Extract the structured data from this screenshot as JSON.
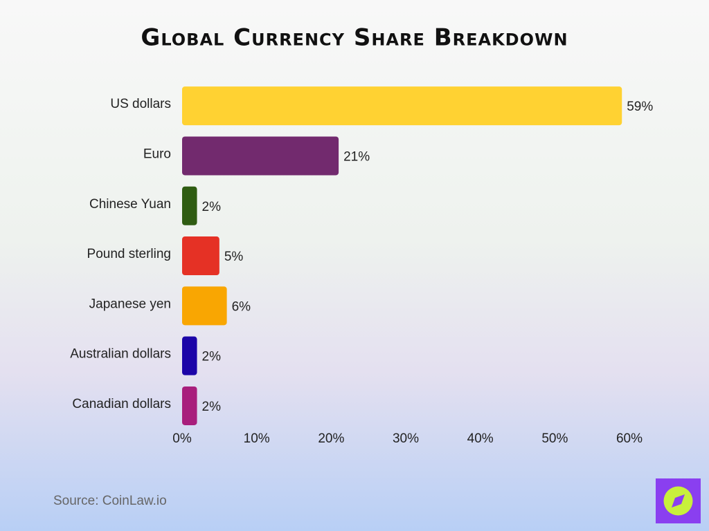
{
  "chart_data": {
    "type": "bar",
    "orientation": "horizontal",
    "title": "Global Currency Share Breakdown",
    "categories": [
      "US dollars",
      "Euro",
      "Chinese Yuan",
      "Pound sterling",
      "Japanese yen",
      "Australian dollars",
      "Canadian dollars"
    ],
    "values": [
      59,
      21,
      2,
      5,
      6,
      2,
      2
    ],
    "value_labels": [
      "59%",
      "21%",
      "2%",
      "5%",
      "6%",
      "2%",
      "2%"
    ],
    "colors": [
      "#ffd232",
      "#722a6e",
      "#2f5c12",
      "#e53125",
      "#f9a602",
      "#1c05a8",
      "#a81e7c"
    ],
    "xlim": [
      0,
      60
    ],
    "xticks": [
      {
        "value": 0,
        "label": "0%"
      },
      {
        "value": 10,
        "label": "10%"
      },
      {
        "value": 20,
        "label": "20%"
      },
      {
        "value": 30,
        "label": "30%"
      },
      {
        "value": 40,
        "label": "40%"
      },
      {
        "value": 50,
        "label": "50%"
      },
      {
        "value": 60,
        "label": "60%"
      }
    ],
    "grid": false,
    "source": "Source: CoinLaw.io"
  }
}
